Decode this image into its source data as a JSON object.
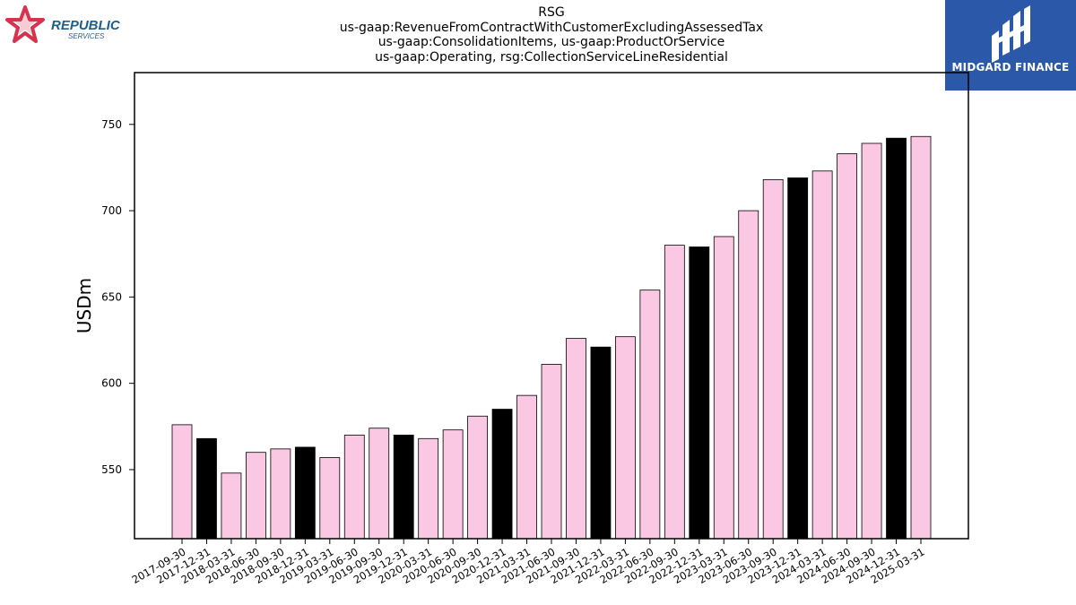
{
  "logos": {
    "left": {
      "line1": "REPUBLIC",
      "line2": "SERVICES",
      "color": "#d6334f",
      "text_color": "#1d5e8c"
    },
    "right": {
      "brand": "MIDGARD FINANCE",
      "color": "#2b58a8"
    }
  },
  "chart_data": {
    "type": "bar",
    "title_lines": [
      "RSG",
      "us-gaap:RevenueFromContractWithCustomerExcludingAssessedTax",
      "us-gaap:ConsolidationItems, us-gaap:ProductOrService",
      "us-gaap:Operating, rsg:CollectionServiceLineResidential"
    ],
    "ylabel": "USDm",
    "xlabel": "",
    "ylim": [
      510,
      780
    ],
    "yticks": [
      550,
      600,
      650,
      700,
      750
    ],
    "grid": false,
    "colors": {
      "quarter": "#fbc8e3",
      "year_end": "#000000",
      "edge": "#000000"
    },
    "categories": [
      "2017-09-30",
      "2017-12-31",
      "2018-03-31",
      "2018-06-30",
      "2018-09-30",
      "2018-12-31",
      "2019-03-31",
      "2019-06-30",
      "2019-09-30",
      "2019-12-31",
      "2020-03-31",
      "2020-06-30",
      "2020-09-30",
      "2020-12-31",
      "2021-03-31",
      "2021-06-30",
      "2021-09-30",
      "2021-12-31",
      "2022-03-31",
      "2022-06-30",
      "2022-09-30",
      "2022-12-31",
      "2023-03-31",
      "2023-06-30",
      "2023-09-30",
      "2023-12-31",
      "2024-03-31",
      "2024-06-30",
      "2024-09-30",
      "2024-12-31",
      "2025-03-31"
    ],
    "values": [
      576,
      568,
      548,
      560,
      562,
      563,
      557,
      570,
      574,
      570,
      568,
      573,
      581,
      585,
      593,
      611,
      626,
      621,
      627,
      654,
      680,
      679,
      685,
      700,
      718,
      719,
      723,
      733,
      739,
      742,
      743
    ]
  }
}
